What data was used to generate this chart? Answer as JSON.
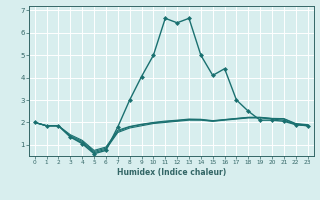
{
  "xlabel": "Humidex (Indice chaleur)",
  "x_values": [
    0,
    1,
    2,
    3,
    4,
    5,
    6,
    7,
    8,
    9,
    10,
    11,
    12,
    13,
    14,
    15,
    16,
    17,
    18,
    19,
    20,
    21,
    22,
    23
  ],
  "lines": [
    {
      "y": [
        2.0,
        1.85,
        1.85,
        1.35,
        1.05,
        0.6,
        0.75,
        1.8,
        3.0,
        4.05,
        5.0,
        6.65,
        6.45,
        6.65,
        5.0,
        4.1,
        4.4,
        3.0,
        2.5,
        2.1,
        2.1,
        2.05,
        1.9,
        1.85
      ],
      "color": "#1a7070",
      "lw": 1.0,
      "marker": "D",
      "ms": 2.0
    },
    {
      "y": [
        2.0,
        1.85,
        1.85,
        1.35,
        1.1,
        0.65,
        0.8,
        1.55,
        1.75,
        1.85,
        1.95,
        2.0,
        2.05,
        2.1,
        2.1,
        2.05,
        2.1,
        2.15,
        2.2,
        2.2,
        2.15,
        2.1,
        1.9,
        1.85
      ],
      "color": "#1a7070",
      "lw": 0.8,
      "marker": null,
      "ms": 0
    },
    {
      "y": [
        2.0,
        1.85,
        1.85,
        1.4,
        1.15,
        0.7,
        0.85,
        1.6,
        1.8,
        1.9,
        1.98,
        2.03,
        2.08,
        2.13,
        2.12,
        2.06,
        2.12,
        2.17,
        2.22,
        2.22,
        2.17,
        2.15,
        1.93,
        1.88
      ],
      "color": "#1a7070",
      "lw": 0.8,
      "marker": null,
      "ms": 0
    },
    {
      "y": [
        2.0,
        1.85,
        1.85,
        1.45,
        1.2,
        0.75,
        0.9,
        1.65,
        1.82,
        1.92,
        2.0,
        2.06,
        2.1,
        2.15,
        2.14,
        2.08,
        2.13,
        2.18,
        2.23,
        2.23,
        2.18,
        2.17,
        1.95,
        1.9
      ],
      "color": "#1a7070",
      "lw": 0.8,
      "marker": null,
      "ms": 0
    }
  ],
  "ylim": [
    0.5,
    7.2
  ],
  "xlim": [
    -0.5,
    23.5
  ],
  "yticks": [
    1,
    2,
    3,
    4,
    5,
    6,
    7
  ],
  "xticks": [
    0,
    1,
    2,
    3,
    4,
    5,
    6,
    7,
    8,
    9,
    10,
    11,
    12,
    13,
    14,
    15,
    16,
    17,
    18,
    19,
    20,
    21,
    22,
    23
  ],
  "bg_color": "#d8eeee",
  "grid_color": "#ffffff",
  "axis_color": "#336666",
  "tick_color": "#336666",
  "label_color": "#336666"
}
